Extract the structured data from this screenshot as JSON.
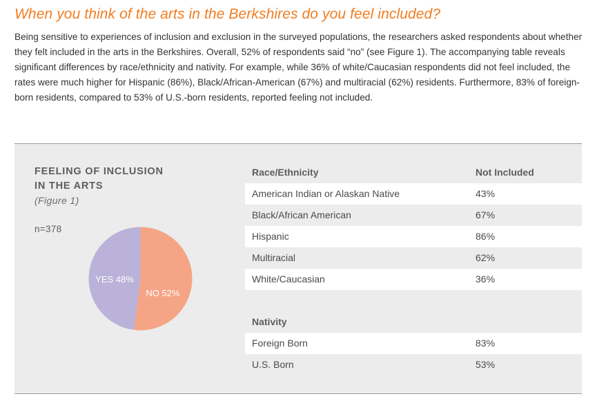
{
  "heading": "When you think of the arts in the Berkshires do you feel included?",
  "intro": "Being sensitive to experiences of inclusion and exclusion in the surveyed populations, the researchers asked respondents about whether they felt included in the arts in the Berkshires. Overall, 52% of respondents said “no” (see Figure 1). The accompanying table reveals significant differences by race/ethnicity and nativity. For example, while 36% of white/Caucasian respondents did not feel included, the rates were much higher for Hispanic (86%), Black/African-American (67%) and multiracial (62%) residents. Furthermore, 83% of foreign-born residents, compared to 53% of U.S.-born residents, reported feeling not included.",
  "figure": {
    "title_line1": "FEELING OF INCLUSION",
    "title_line2": "IN THE ARTS",
    "subtitle": "(Figure 1)",
    "n_label": "n=378"
  },
  "chart_data": {
    "type": "pie",
    "title": "FEELING OF INCLUSION IN THE ARTS",
    "slices": [
      {
        "label": "NO 52%",
        "category": "NO",
        "value": 52,
        "color": "#f5a585"
      },
      {
        "label": "YES 48%",
        "category": "YES",
        "value": 48,
        "color": "#bab2d9"
      }
    ]
  },
  "table": {
    "race_header": "Race/Ethnicity",
    "value_header": "Not Included",
    "race_rows": [
      {
        "label": "American Indian or Alaskan Native",
        "value": "43%"
      },
      {
        "label": "Black/African American",
        "value": "67%"
      },
      {
        "label": "Hispanic",
        "value": "86%"
      },
      {
        "label": "Multiracial",
        "value": "62%"
      },
      {
        "label": "White/Caucasian",
        "value": "36%"
      }
    ],
    "nativity_header": "Nativity",
    "nativity_rows": [
      {
        "label": "Foreign Born",
        "value": "83%"
      },
      {
        "label": "U.S. Born",
        "value": "53%"
      }
    ]
  }
}
